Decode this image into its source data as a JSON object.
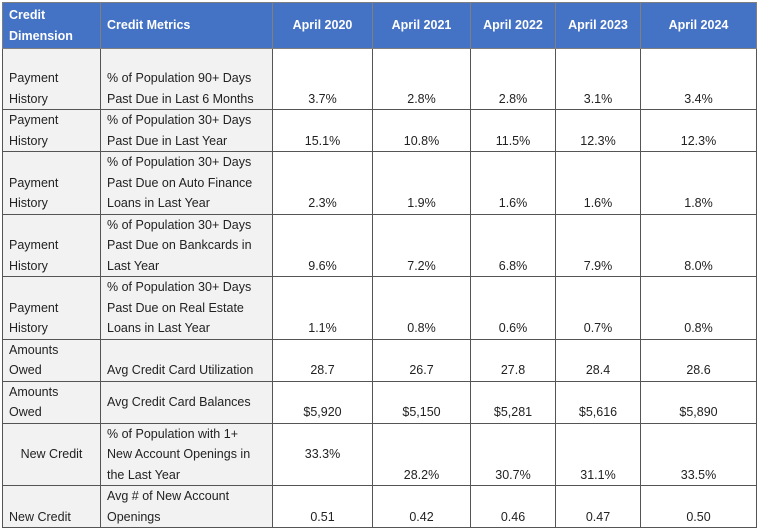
{
  "header": {
    "dimension": "Credit Dimension",
    "metrics": "Credit Metrics",
    "periods": [
      "April 2020",
      "April 2021",
      "April 2022",
      "April 2023",
      "April 2024"
    ]
  },
  "colors": {
    "header_bg": "#4472C4",
    "label_bg": "#f2f2f2"
  },
  "rows": [
    {
      "dimension": "Payment History",
      "metric": "% of Population 90+ Days Past Due in Last 6 Months",
      "values": [
        "3.7%",
        "2.8%",
        "2.8%",
        "3.1%",
        "3.4%"
      ]
    },
    {
      "dimension": "Payment History",
      "metric": "% of Population 30+ Days Past Due in Last Year",
      "values": [
        "15.1%",
        "10.8%",
        "11.5%",
        "12.3%",
        "12.3%"
      ]
    },
    {
      "dimension": "Payment History",
      "metric": "% of Population 30+ Days Past Due on Auto Finance Loans in Last Year",
      "values": [
        "2.3%",
        "1.9%",
        "1.6%",
        "1.6%",
        "1.8%"
      ]
    },
    {
      "dimension": "Payment History",
      "metric": "% of Population 30+ Days Past Due on Bankcards in Last Year",
      "values": [
        "9.6%",
        "7.2%",
        "6.8%",
        "7.9%",
        "8.0%"
      ]
    },
    {
      "dimension": "Payment History",
      "metric": "% of Population 30+ Days Past Due on Real Estate Loans in Last Year",
      "values": [
        "1.1%",
        "0.8%",
        "0.6%",
        "0.7%",
        "0.8%"
      ]
    },
    {
      "dimension": "Amounts Owed",
      "metric": "Avg Credit Card Utilization",
      "values": [
        "28.7",
        "26.7",
        "27.8",
        "28.4",
        "28.6"
      ]
    },
    {
      "dimension": "Amounts Owed",
      "metric": "Avg Credit Card Balances",
      "values": [
        "$5,920",
        "$5,150",
        "$5,281",
        "$5,616",
        "$5,890"
      ]
    },
    {
      "dimension": "New Credit",
      "metric": "% of Population with 1+ New Account Openings in the Last Year",
      "values": [
        "33.3%",
        "28.2%",
        "30.7%",
        "31.1%",
        "33.5%"
      ]
    },
    {
      "dimension": "New Credit",
      "metric": "Avg # of New Account Openings",
      "values": [
        "0.51",
        "0.42",
        "0.46",
        "0.47",
        "0.50"
      ]
    }
  ]
}
